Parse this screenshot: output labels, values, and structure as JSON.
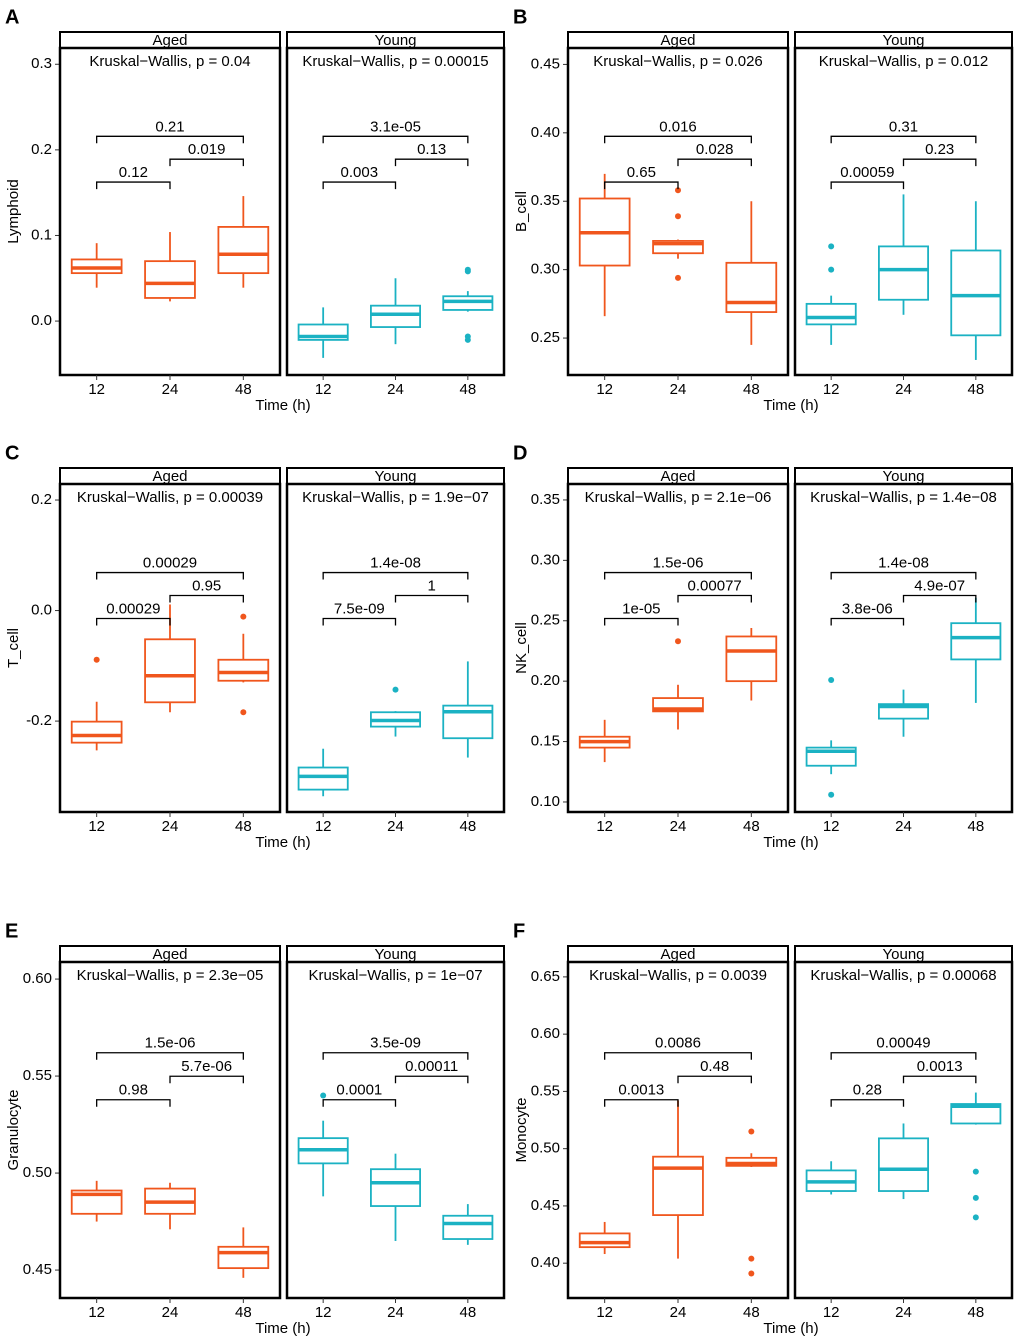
{
  "chart_data": [
    {
      "type": "box",
      "panel": "A",
      "ylabel": "Lymphoid",
      "xlabel": "Time (h)",
      "ylim": [
        -0.063,
        0.319
      ],
      "yticks": [
        {
          "value": 0,
          "label": "0.0"
        },
        0.1,
        0.2,
        0.3
      ],
      "facets": [
        {
          "name": "Aged",
          "color": "#f0561d",
          "test": "Kruskal−Wallis, p = 0.04",
          "categories": [
            "12",
            "24",
            "48"
          ],
          "boxes": [
            {
              "low": 0.039,
              "q1": 0.056,
              "median": 0.062,
              "q3": 0.072,
              "high": 0.091,
              "outliers": []
            },
            {
              "low": 0.023,
              "q1": 0.027,
              "median": 0.044,
              "q3": 0.07,
              "high": 0.104,
              "outliers": []
            },
            {
              "low": 0.039,
              "q1": 0.056,
              "median": 0.078,
              "q3": 0.11,
              "high": 0.146,
              "outliers": []
            }
          ],
          "comparisons": [
            {
              "groups": [
                "12",
                "24"
              ],
              "label": "0.12"
            },
            {
              "groups": [
                "24",
                "48"
              ],
              "label": "0.019"
            },
            {
              "groups": [
                "12",
                "48"
              ],
              "label": "0.21"
            }
          ]
        },
        {
          "name": "Young",
          "color": "#1bb2c3",
          "test": "Kruskal−Wallis, p = 0.00015",
          "categories": [
            "12",
            "24",
            "48"
          ],
          "boxes": [
            {
              "low": -0.043,
              "q1": -0.022,
              "median": -0.018,
              "q3": -0.004,
              "high": 0.016,
              "outliers": []
            },
            {
              "low": -0.027,
              "q1": -0.007,
              "median": 0.008,
              "q3": 0.018,
              "high": 0.05,
              "outliers": []
            },
            {
              "low": 0.011,
              "q1": 0.013,
              "median": 0.023,
              "q3": 0.029,
              "high": 0.035,
              "outliers": [
                0.058,
                0.06,
                -0.018,
                -0.022
              ]
            }
          ],
          "comparisons": [
            {
              "groups": [
                "12",
                "24"
              ],
              "label": "0.003"
            },
            {
              "groups": [
                "24",
                "48"
              ],
              "label": "0.13"
            },
            {
              "groups": [
                "12",
                "48"
              ],
              "label": "3.1e-05"
            }
          ]
        }
      ]
    },
    {
      "type": "box",
      "panel": "B",
      "ylabel": "B_cell",
      "xlabel": "Time (h)",
      "ylim": [
        0.223,
        0.462
      ],
      "yticks": [
        0.25,
        {
          "value": 0.3,
          "label": "0.30"
        },
        0.35,
        {
          "value": 0.4,
          "label": "0.40"
        },
        0.45
      ],
      "facets": [
        {
          "name": "Aged",
          "color": "#f0561d",
          "test": "Kruskal−Wallis, p = 0.026",
          "categories": [
            "12",
            "24",
            "48"
          ],
          "boxes": [
            {
              "low": 0.266,
              "q1": 0.303,
              "median": 0.327,
              "q3": 0.352,
              "high": 0.37,
              "outliers": []
            },
            {
              "low": 0.308,
              "q1": 0.312,
              "median": 0.319,
              "q3": 0.321,
              "high": 0.322,
              "outliers": [
                0.358,
                0.339,
                0.294
              ]
            },
            {
              "low": 0.245,
              "q1": 0.269,
              "median": 0.276,
              "q3": 0.305,
              "high": 0.35,
              "outliers": []
            }
          ],
          "comparisons": [
            {
              "groups": [
                "12",
                "24"
              ],
              "label": "0.65"
            },
            {
              "groups": [
                "24",
                "48"
              ],
              "label": "0.028"
            },
            {
              "groups": [
                "12",
                "48"
              ],
              "label": "0.016"
            }
          ]
        },
        {
          "name": "Young",
          "color": "#1bb2c3",
          "test": "Kruskal−Wallis, p = 0.012",
          "categories": [
            "12",
            "24",
            "48"
          ],
          "boxes": [
            {
              "low": 0.245,
              "q1": 0.26,
              "median": 0.265,
              "q3": 0.275,
              "high": 0.281,
              "outliers": [
                0.317,
                0.3
              ]
            },
            {
              "low": 0.267,
              "q1": 0.278,
              "median": 0.3,
              "q3": 0.317,
              "high": 0.355,
              "outliers": []
            },
            {
              "low": 0.234,
              "q1": 0.252,
              "median": 0.281,
              "q3": 0.314,
              "high": 0.35,
              "outliers": []
            }
          ],
          "comparisons": [
            {
              "groups": [
                "12",
                "24"
              ],
              "label": "0.00059"
            },
            {
              "groups": [
                "24",
                "48"
              ],
              "label": "0.23"
            },
            {
              "groups": [
                "12",
                "48"
              ],
              "label": "0.31"
            }
          ]
        }
      ]
    },
    {
      "type": "box",
      "panel": "C",
      "ylabel": "T_cell",
      "xlabel": "Time (h)",
      "ylim": [
        -0.3645,
        0.229
      ],
      "yticks": [
        -0.2,
        {
          "value": 0,
          "label": "0.0"
        },
        0.2
      ],
      "facets": [
        {
          "name": "Aged",
          "color": "#f0561d",
          "test": "Kruskal−Wallis, p = 0.00039",
          "categories": [
            "12",
            "24",
            "48"
          ],
          "boxes": [
            {
              "low": -0.253,
              "q1": -0.239,
              "median": -0.226,
              "q3": -0.201,
              "high": -0.165,
              "outliers": [
                -0.089
              ]
            },
            {
              "low": -0.184,
              "q1": -0.166,
              "median": -0.118,
              "q3": -0.052,
              "high": 0.011,
              "outliers": []
            },
            {
              "low": -0.13,
              "q1": -0.127,
              "median": -0.112,
              "q3": -0.089,
              "high": -0.042,
              "outliers": [
                -0.011,
                -0.184
              ]
            }
          ],
          "comparisons": [
            {
              "groups": [
                "12",
                "24"
              ],
              "label": "0.00029"
            },
            {
              "groups": [
                "24",
                "48"
              ],
              "label": "0.95"
            },
            {
              "groups": [
                "12",
                "48"
              ],
              "label": "0.00029"
            }
          ]
        },
        {
          "name": "Young",
          "color": "#1bb2c3",
          "test": "Kruskal−Wallis, p = 1.9e−07",
          "categories": [
            "12",
            "24",
            "48"
          ],
          "boxes": [
            {
              "low": -0.336,
              "q1": -0.324,
              "median": -0.3,
              "q3": -0.284,
              "high": -0.25,
              "outliers": []
            },
            {
              "low": -0.228,
              "q1": -0.21,
              "median": -0.199,
              "q3": -0.184,
              "high": -0.182,
              "outliers": [
                -0.143
              ]
            },
            {
              "low": -0.266,
              "q1": -0.231,
              "median": -0.183,
              "q3": -0.172,
              "high": -0.092,
              "outliers": []
            }
          ],
          "comparisons": [
            {
              "groups": [
                "12",
                "24"
              ],
              "label": "7.5e-09"
            },
            {
              "groups": [
                "24",
                "48"
              ],
              "label": "1"
            },
            {
              "groups": [
                "12",
                "48"
              ],
              "label": "1.4e-08"
            }
          ]
        }
      ]
    },
    {
      "type": "box",
      "panel": "D",
      "ylabel": "NK_cell",
      "xlabel": "Time (h)",
      "ylim": [
        0.0917,
        0.3632
      ],
      "yticks": [
        {
          "value": 0.1,
          "label": "0.10"
        },
        0.15,
        {
          "value": 0.2,
          "label": "0.20"
        },
        0.25,
        {
          "value": 0.3,
          "label": "0.30"
        },
        0.35
      ],
      "facets": [
        {
          "name": "Aged",
          "color": "#f0561d",
          "test": "Kruskal−Wallis, p = 2.1e−06",
          "categories": [
            "12",
            "24",
            "48"
          ],
          "boxes": [
            {
              "low": 0.133,
              "q1": 0.145,
              "median": 0.15,
              "q3": 0.154,
              "high": 0.168,
              "outliers": []
            },
            {
              "low": 0.16,
              "q1": 0.175,
              "median": 0.177,
              "q3": 0.186,
              "high": 0.197,
              "outliers": [
                0.233
              ]
            },
            {
              "low": 0.184,
              "q1": 0.2,
              "median": 0.225,
              "q3": 0.237,
              "high": 0.244,
              "outliers": []
            }
          ],
          "comparisons": [
            {
              "groups": [
                "12",
                "24"
              ],
              "label": "1e-05"
            },
            {
              "groups": [
                "24",
                "48"
              ],
              "label": "0.00077"
            },
            {
              "groups": [
                "12",
                "48"
              ],
              "label": "1.5e-06"
            }
          ]
        },
        {
          "name": "Young",
          "color": "#1bb2c3",
          "test": "Kruskal−Wallis, p = 1.4e−08",
          "categories": [
            "12",
            "24",
            "48"
          ],
          "boxes": [
            {
              "low": 0.123,
              "q1": 0.13,
              "median": 0.142,
              "q3": 0.145,
              "high": 0.151,
              "outliers": [
                0.201,
                0.106
              ]
            },
            {
              "low": 0.154,
              "q1": 0.169,
              "median": 0.179,
              "q3": 0.181,
              "high": 0.193,
              "outliers": []
            },
            {
              "low": 0.182,
              "q1": 0.218,
              "median": 0.236,
              "q3": 0.248,
              "high": 0.269,
              "outliers": []
            }
          ],
          "comparisons": [
            {
              "groups": [
                "12",
                "24"
              ],
              "label": "3.8e-06"
            },
            {
              "groups": [
                "24",
                "48"
              ],
              "label": "4.9e-07"
            },
            {
              "groups": [
                "12",
                "48"
              ],
              "label": "1.4e-08"
            }
          ]
        }
      ]
    },
    {
      "type": "box",
      "panel": "E",
      "ylabel": "Granulocyte",
      "xlabel": "Time (h)",
      "ylim": [
        0.4356,
        0.6088
      ],
      "yticks": [
        0.45,
        {
          "value": 0.5,
          "label": "0.50"
        },
        0.55,
        {
          "value": 0.6,
          "label": "0.60"
        }
      ],
      "facets": [
        {
          "name": "Aged",
          "color": "#f0561d",
          "test": "Kruskal−Wallis, p = 2.3e−05",
          "categories": [
            "12",
            "24",
            "48"
          ],
          "boxes": [
            {
              "low": 0.475,
              "q1": 0.479,
              "median": 0.489,
              "q3": 0.491,
              "high": 0.496,
              "outliers": []
            },
            {
              "low": 0.471,
              "q1": 0.479,
              "median": 0.485,
              "q3": 0.492,
              "high": 0.495,
              "outliers": []
            },
            {
              "low": 0.446,
              "q1": 0.451,
              "median": 0.459,
              "q3": 0.462,
              "high": 0.472,
              "outliers": []
            }
          ],
          "comparisons": [
            {
              "groups": [
                "12",
                "24"
              ],
              "label": "0.98"
            },
            {
              "groups": [
                "24",
                "48"
              ],
              "label": "5.7e-06"
            },
            {
              "groups": [
                "12",
                "48"
              ],
              "label": "1.5e-06"
            }
          ]
        },
        {
          "name": "Young",
          "color": "#1bb2c3",
          "test": "Kruskal−Wallis, p = 1e−07",
          "categories": [
            "12",
            "24",
            "48"
          ],
          "boxes": [
            {
              "low": 0.488,
              "q1": 0.505,
              "median": 0.512,
              "q3": 0.518,
              "high": 0.527,
              "outliers": [
                0.54
              ]
            },
            {
              "low": 0.465,
              "q1": 0.483,
              "median": 0.495,
              "q3": 0.502,
              "high": 0.51,
              "outliers": []
            },
            {
              "low": 0.463,
              "q1": 0.466,
              "median": 0.474,
              "q3": 0.478,
              "high": 0.484,
              "outliers": []
            }
          ],
          "comparisons": [
            {
              "groups": [
                "12",
                "24"
              ],
              "label": "0.0001"
            },
            {
              "groups": [
                "24",
                "48"
              ],
              "label": "0.00011"
            },
            {
              "groups": [
                "12",
                "48"
              ],
              "label": "3.5e-09"
            }
          ]
        }
      ]
    },
    {
      "type": "box",
      "panel": "F",
      "ylabel": "Monocyte",
      "xlabel": "Time (h)",
      "ylim": [
        0.3696,
        0.663
      ],
      "yticks": [
        {
          "value": 0.4,
          "label": "0.40"
        },
        0.45,
        {
          "value": 0.5,
          "label": "0.50"
        },
        0.55,
        {
          "value": 0.6,
          "label": "0.60"
        },
        0.65
      ],
      "facets": [
        {
          "name": "Aged",
          "color": "#f0561d",
          "test": "Kruskal−Wallis, p = 0.0039",
          "categories": [
            "12",
            "24",
            "48"
          ],
          "boxes": [
            {
              "low": 0.408,
              "q1": 0.414,
              "median": 0.418,
              "q3": 0.426,
              "high": 0.436,
              "outliers": []
            },
            {
              "low": 0.404,
              "q1": 0.442,
              "median": 0.483,
              "q3": 0.493,
              "high": 0.542,
              "outliers": []
            },
            {
              "low": 0.484,
              "q1": 0.485,
              "median": 0.487,
              "q3": 0.492,
              "high": 0.496,
              "outliers": [
                0.515,
                0.404,
                0.391
              ]
            }
          ],
          "comparisons": [
            {
              "groups": [
                "12",
                "24"
              ],
              "label": "0.0013"
            },
            {
              "groups": [
                "24",
                "48"
              ],
              "label": "0.48"
            },
            {
              "groups": [
                "12",
                "48"
              ],
              "label": "0.0086"
            }
          ]
        },
        {
          "name": "Young",
          "color": "#1bb2c3",
          "test": "Kruskal−Wallis, p = 0.00068",
          "categories": [
            "12",
            "24",
            "48"
          ],
          "boxes": [
            {
              "low": 0.46,
              "q1": 0.463,
              "median": 0.471,
              "q3": 0.481,
              "high": 0.489,
              "outliers": []
            },
            {
              "low": 0.456,
              "q1": 0.463,
              "median": 0.482,
              "q3": 0.509,
              "high": 0.522,
              "outliers": []
            },
            {
              "low": 0.521,
              "q1": 0.522,
              "median": 0.537,
              "q3": 0.539,
              "high": 0.549,
              "outliers": [
                0.48,
                0.457,
                0.44
              ]
            }
          ],
          "comparisons": [
            {
              "groups": [
                "12",
                "24"
              ],
              "label": "0.28"
            },
            {
              "groups": [
                "24",
                "48"
              ],
              "label": "0.0013"
            },
            {
              "groups": [
                "12",
                "48"
              ],
              "label": "0.00049"
            }
          ]
        }
      ]
    }
  ]
}
